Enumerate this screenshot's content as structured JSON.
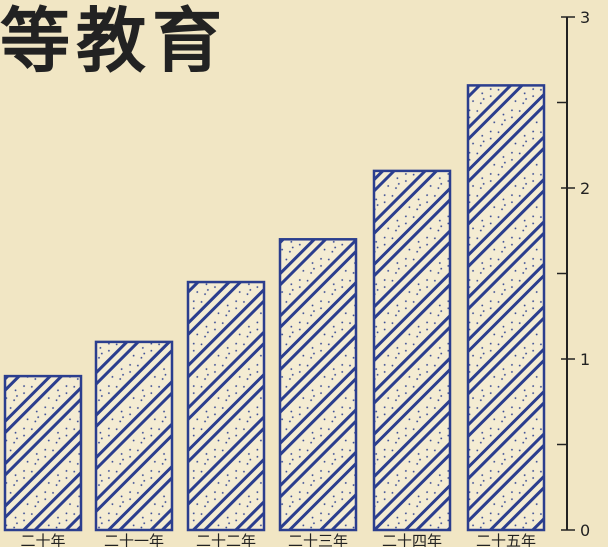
{
  "title": "等教育",
  "chart_data": {
    "type": "bar",
    "categories": [
      "二十年",
      "二十一年",
      "二十二年",
      "二十三年",
      "二十四年",
      "二十五年"
    ],
    "values": [
      0.9,
      1.1,
      1.45,
      1.7,
      2.1,
      2.6
    ],
    "ylim": [
      0,
      3
    ],
    "yticks": [
      "0",
      "1",
      "2",
      "3"
    ],
    "grid": false,
    "bar_color": "#2b3e8e",
    "paper_color": "#f1e6c4"
  }
}
